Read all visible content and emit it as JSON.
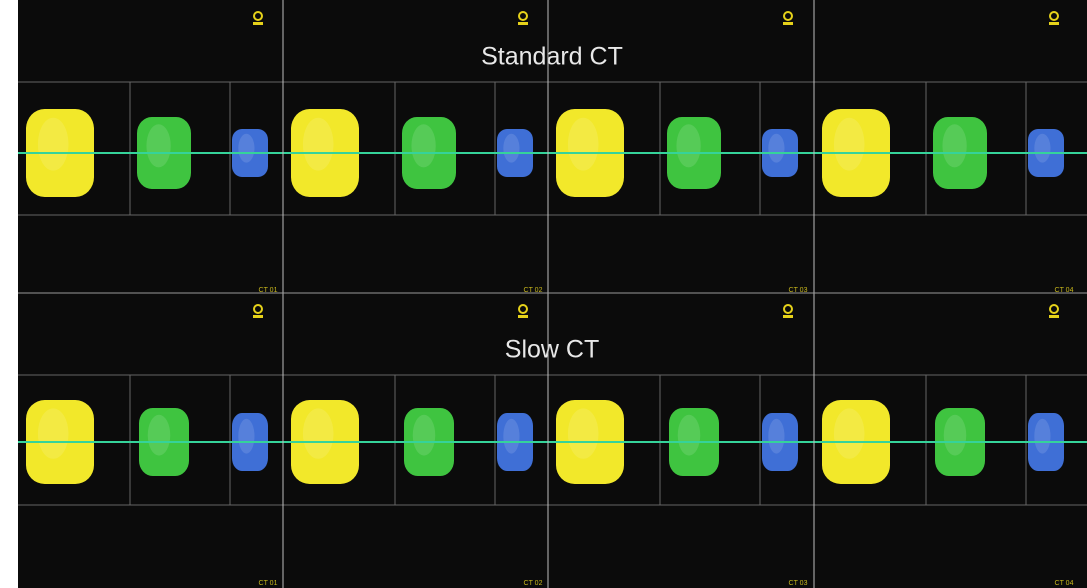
{
  "panels": [
    {
      "title": "Standard CT",
      "labels": [
        "CT 01",
        "CT 02",
        "CT 03",
        "CT 04"
      ]
    },
    {
      "title": "Slow CT",
      "labels": [
        "CT 01",
        "CT 02",
        "CT 03",
        "CT 04"
      ]
    }
  ]
}
